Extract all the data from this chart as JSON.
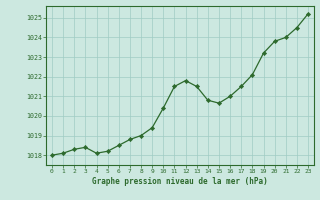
{
  "x": [
    0,
    1,
    2,
    3,
    4,
    5,
    6,
    7,
    8,
    9,
    10,
    11,
    12,
    13,
    14,
    15,
    16,
    17,
    18,
    19,
    20,
    21,
    22,
    23
  ],
  "y": [
    1018.0,
    1018.1,
    1018.3,
    1018.4,
    1018.1,
    1018.2,
    1018.5,
    1018.8,
    1019.0,
    1019.4,
    1020.4,
    1021.5,
    1021.8,
    1021.5,
    1020.8,
    1020.65,
    1021.0,
    1021.5,
    1022.1,
    1023.2,
    1023.8,
    1024.0,
    1024.5,
    1025.2
  ],
  "line_color": "#2d6a2d",
  "marker_color": "#2d6a2d",
  "bg_color": "#cce8e0",
  "grid_color": "#a0ccc4",
  "text_color": "#2d6a2d",
  "xlabel": "Graphe pression niveau de la mer (hPa)",
  "ylim_min": 1017.5,
  "ylim_max": 1025.6,
  "xlim_min": -0.5,
  "xlim_max": 23.5,
  "yticks": [
    1018,
    1019,
    1020,
    1021,
    1022,
    1023,
    1024,
    1025
  ],
  "xticks": [
    0,
    1,
    2,
    3,
    4,
    5,
    6,
    7,
    8,
    9,
    10,
    11,
    12,
    13,
    14,
    15,
    16,
    17,
    18,
    19,
    20,
    21,
    22,
    23
  ]
}
